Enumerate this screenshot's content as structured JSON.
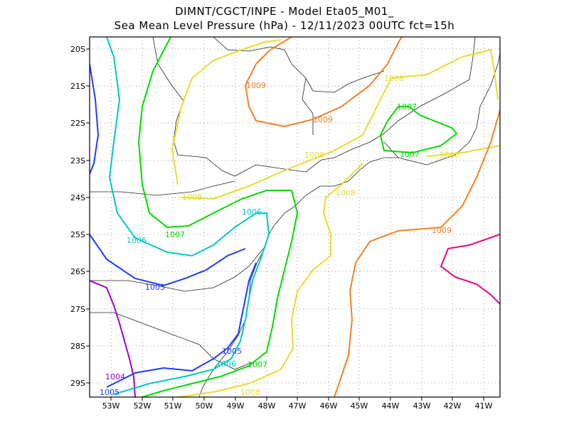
{
  "header": {
    "line1": "DIMNT/CGCT/INPE  -  Model Eta05_M01_",
    "line2": "Sea Mean Level Pressure (hPa) - 12/11/2023 00UTC fct=15h"
  },
  "axes": {
    "lat_labels": [
      "20S",
      "21S",
      "22S",
      "23S",
      "24S",
      "25S",
      "26S",
      "27S",
      "28S",
      "29S"
    ],
    "lon_labels": [
      "53W",
      "52W",
      "51W",
      "50W",
      "49W",
      "48W",
      "47W",
      "46W",
      "45W",
      "44W",
      "43W",
      "42W",
      "41W"
    ]
  },
  "chart_data": {
    "type": "contour_map",
    "variable": "Sea Mean Level Pressure (hPa)",
    "lon_range": [
      -53.6,
      -40.5
    ],
    "lat_range": [
      -29.4,
      -19.7
    ],
    "contours": [
      {
        "level": 1004,
        "color": "#a000c8",
        "labels": [
          "1004"
        ]
      },
      {
        "level": 1005,
        "color": "#1e3cff",
        "labels": [
          "1005",
          "1005",
          "1005"
        ]
      },
      {
        "level": 1006,
        "color": "#00c8c8",
        "labels": [
          "1006",
          "1006",
          "1006"
        ]
      },
      {
        "level": 1007,
        "color": "#00dc00",
        "labels": [
          "1007",
          "1007",
          "1007",
          "1007"
        ]
      },
      {
        "level": 1008,
        "color": "#e6dc32",
        "labels": [
          "1008",
          "1008",
          "1008",
          "1008",
          "1008",
          "1008"
        ]
      },
      {
        "level": 1009,
        "color": "#f08228",
        "labels": [
          "1009",
          "1009",
          "1009"
        ]
      },
      {
        "level": 1010,
        "color": "#f00082",
        "labels": []
      }
    ]
  }
}
